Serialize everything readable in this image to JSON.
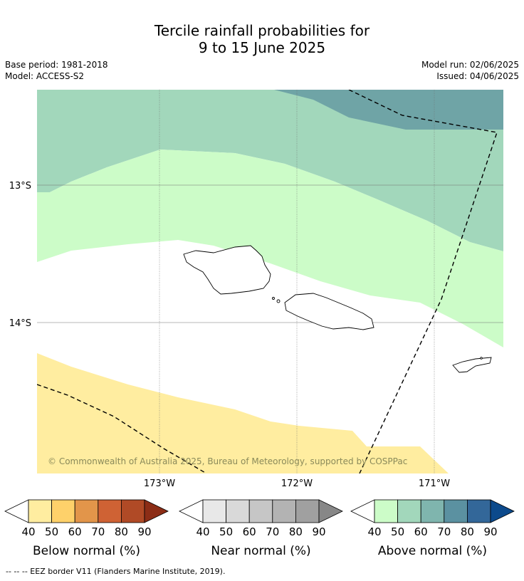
{
  "header": {
    "title_line1": "Tercile rainfall probabilities for",
    "title_line2": "9 to 15 June 2025",
    "base_period": "Base period: 1981-2018",
    "model": "Model: ACCESS-S2",
    "model_run": "Model run: 02/06/2025",
    "issued": "Issued: 04/06/2025"
  },
  "map": {
    "lat_labels": [
      "13°S",
      "14°S"
    ],
    "lon_labels": [
      "173°W",
      "172°W",
      "171°W"
    ],
    "copyright": "© Commonwealth of Australia 2025, Bureau of Meteorology, supported by COSPPac"
  },
  "colorbars": [
    {
      "label": "Below normal (%)",
      "ticks": [
        "40",
        "50",
        "60",
        "70",
        "80",
        "90"
      ],
      "colors": [
        "#ffffff",
        "#ffeda0",
        "#fed16a",
        "#e2954a",
        "#cf6234",
        "#b04a26",
        "#8c2d16"
      ]
    },
    {
      "label": "Near normal (%)",
      "ticks": [
        "40",
        "50",
        "60",
        "70",
        "80",
        "90"
      ],
      "colors": [
        "#ffffff",
        "#e8e8e8",
        "#d9d9d9",
        "#c6c6c6",
        "#b3b3b3",
        "#a0a0a0",
        "#878787"
      ]
    },
    {
      "label": "Above normal (%)",
      "ticks": [
        "40",
        "50",
        "60",
        "70",
        "80",
        "90"
      ],
      "colors": [
        "#ffffff",
        "#ccfcc8",
        "#a2d7bb",
        "#7fb5ae",
        "#5b91a1",
        "#336799",
        "#0c4a8c"
      ]
    }
  ],
  "footnote": "--  --  -- EEZ border V11 (Flanders Marine Institute, 2019).",
  "colors": {
    "above_50": "#ccfcc8",
    "above_60": "#a2d7bb",
    "above_70": "#6fa4a6",
    "below_50": "#ffeda0"
  }
}
